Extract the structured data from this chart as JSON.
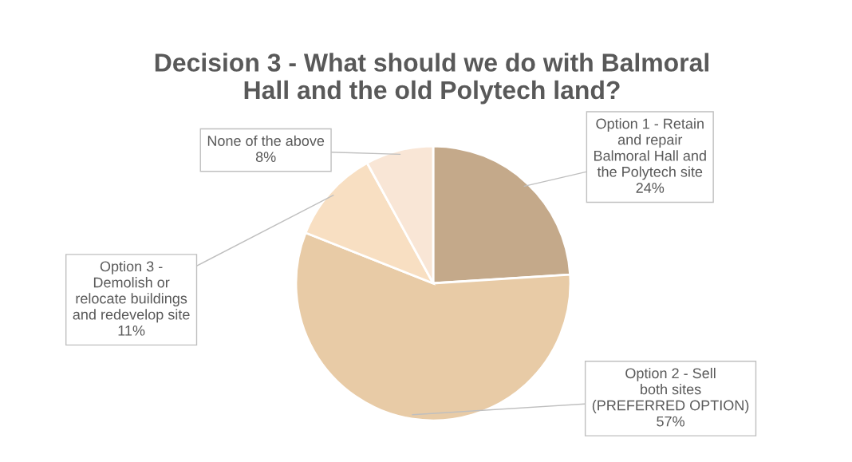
{
  "chart_data": {
    "type": "pie",
    "title": "Decision 3 - What should we do with Balmoral Hall and the old Polytech land?",
    "categories": [
      "Option 1 - Retain and repair Balmoral Hall and the Polytech site",
      "Option 2 - Sell both sites (PREFERRED OPTION)",
      "Option 3 - Demolish or relocate buildings and redevelop site",
      "None of the above"
    ],
    "values": [
      24,
      57,
      11,
      8
    ],
    "colors": [
      "#c4a98a",
      "#e8cba6",
      "#f8dfc2",
      "#f9e6d6"
    ],
    "value_labels": [
      "24%",
      "57%",
      "11%",
      "8%"
    ],
    "legend": false
  }
}
